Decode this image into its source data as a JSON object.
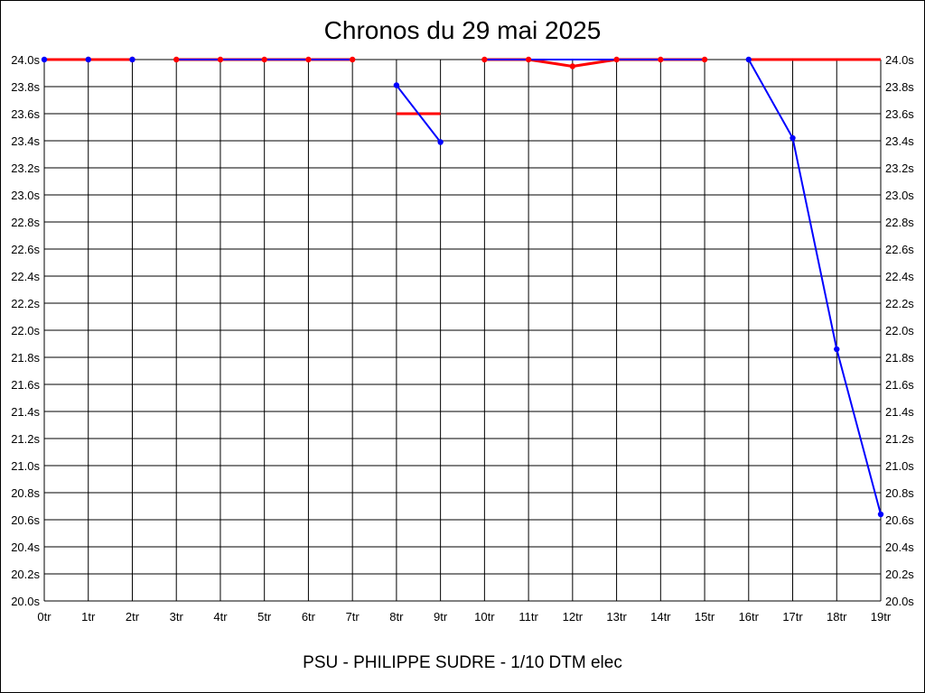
{
  "chart_data": {
    "type": "line",
    "title": "Chronos du 29 mai 2025",
    "footer": "PSU - PHILIPPE SUDRE - 1/10 DTM elec",
    "x_categories": [
      "0tr",
      "1tr",
      "2tr",
      "3tr",
      "4tr",
      "5tr",
      "6tr",
      "7tr",
      "8tr",
      "9tr",
      "10tr",
      "11tr",
      "12tr",
      "13tr",
      "14tr",
      "15tr",
      "16tr",
      "17tr",
      "18tr",
      "19tr"
    ],
    "y_ticks": [
      "20.0s",
      "20.2s",
      "20.4s",
      "20.6s",
      "20.8s",
      "21.0s",
      "21.2s",
      "21.4s",
      "21.6s",
      "21.8s",
      "22.0s",
      "22.2s",
      "22.4s",
      "22.6s",
      "22.8s",
      "23.0s",
      "23.2s",
      "23.4s",
      "23.6s",
      "23.8s",
      "24.0s"
    ],
    "ylim": [
      20.0,
      24.0
    ],
    "grid": true,
    "colors": {
      "red_series": "#ff0000",
      "blue_series": "#0000ff",
      "grid": "#000000"
    },
    "series": [
      {
        "color": "red",
        "line_segments": [
          [
            [
              0,
              24.0
            ],
            [
              2,
              24.0
            ]
          ],
          [
            [
              3,
              24.0
            ],
            [
              7,
              24.0
            ]
          ],
          [
            [
              8,
              23.6
            ],
            [
              9,
              23.6
            ]
          ],
          [
            [
              10,
              24.0
            ],
            [
              11,
              24.0
            ],
            [
              12,
              23.95
            ],
            [
              13,
              24.0
            ],
            [
              15,
              24.0
            ]
          ],
          [
            [
              16,
              24.0
            ],
            [
              19,
              24.0
            ]
          ]
        ],
        "markers": [
          [
            1,
            24.0
          ],
          [
            2,
            24.0
          ],
          [
            3,
            24.0
          ],
          [
            4,
            24.0
          ],
          [
            5,
            24.0
          ],
          [
            6,
            24.0
          ],
          [
            7,
            24.0
          ],
          [
            10,
            24.0
          ],
          [
            11,
            24.0
          ],
          [
            12,
            23.95
          ],
          [
            13,
            24.0
          ],
          [
            14,
            24.0
          ],
          [
            15,
            24.0
          ]
        ]
      },
      {
        "color": "blue",
        "line_segments": [
          [
            [
              3,
              24.0
            ],
            [
              7,
              24.0
            ]
          ],
          [
            [
              8,
              23.81
            ],
            [
              9,
              23.39
            ]
          ],
          [
            [
              10,
              24.0
            ],
            [
              15,
              24.0
            ]
          ],
          [
            [
              16,
              24.0
            ],
            [
              17,
              23.42
            ],
            [
              18,
              21.86
            ],
            [
              19,
              20.64
            ]
          ]
        ],
        "markers": [
          [
            0,
            24.0
          ],
          [
            1,
            24.0
          ],
          [
            2,
            24.0
          ],
          [
            8,
            23.81
          ],
          [
            9,
            23.39
          ],
          [
            16,
            24.0
          ],
          [
            17,
            23.42
          ],
          [
            18,
            21.86
          ],
          [
            19,
            20.64
          ]
        ]
      }
    ]
  }
}
